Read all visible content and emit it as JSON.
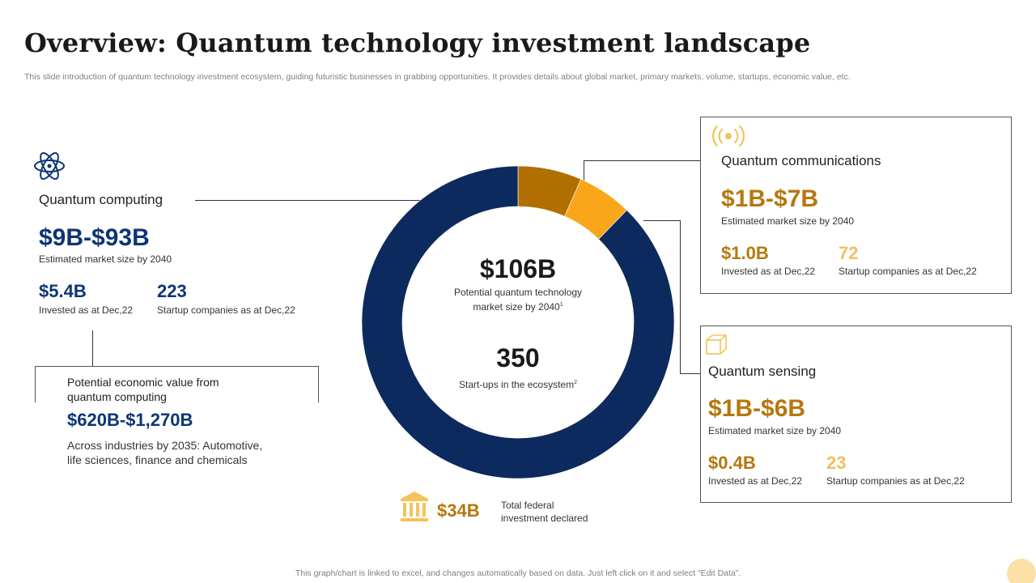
{
  "header": {
    "title": "Overview: Quantum technology investment landscape",
    "subtitle": "This slide introduction of quantum technology investment ecosystem, guiding futuristic businesses in grabbing opportunities. It provides details about global market, primary markets, volume, startups, economic value, etc."
  },
  "footer": "This graph/chart is linked to excel,  and changes automatically based on data. Just left click on it and select “Edit Data”.",
  "colors": {
    "navy": "#0d2a5e",
    "brown": "#b06f00",
    "orange": "#f9a61a",
    "gold": "#b5780e"
  },
  "chart_data": {
    "type": "pie",
    "categories": [
      "Quantum communications",
      "Quantum sensing",
      "Quantum computing"
    ],
    "values": [
      7,
      6,
      93
    ],
    "colors": [
      "#b06f00",
      "#f9a61a",
      "#0d2a5e"
    ],
    "center": {
      "value": "$106B",
      "label_line1": "Potential quantum technology",
      "label_line2": "market size by 2040",
      "label_sup": "1",
      "startups_value": "350",
      "startups_label": "Start-ups in the ecosystem",
      "startups_sup": "2"
    }
  },
  "computing": {
    "icon": "atom-icon",
    "heading": "Quantum computing",
    "market": "$9B-$93B",
    "market_label": "Estimated market size by 2040",
    "invested": "$5.4B",
    "invested_label": "Invested  as at Dec,22",
    "startups": "223",
    "startups_label": "Startup companies as at Dec,22",
    "econ_heading_line1": "Potential economic value from",
    "econ_heading_line2": "quantum computing",
    "econ_value": "$620B-$1,270B",
    "econ_desc_line1": "Across industries by 2035: Automotive,",
    "econ_desc_line2": "life sciences, finance and chemicals"
  },
  "communications": {
    "icon": "broadcast-icon",
    "heading": "Quantum communications",
    "market": "$1B-$7B",
    "market_label": "Estimated market size by 2040",
    "invested": "$1.0B",
    "invested_label": "Invested  as at Dec,22",
    "startups": "72",
    "startups_label": "Startup companies as at Dec,22"
  },
  "sensing": {
    "icon": "cube-icon",
    "heading": "Quantum sensing",
    "market": "$1B-$6B",
    "market_label": "Estimated market size by 2040",
    "invested": "$0.4B",
    "invested_label": "Invested  as at Dec,22",
    "startups": "23",
    "startups_label": "Startup companies as at Dec,22"
  },
  "federal": {
    "icon": "bank-icon",
    "value": "$34B",
    "label_line1": "Total federal",
    "label_line2": "investment  declared"
  }
}
